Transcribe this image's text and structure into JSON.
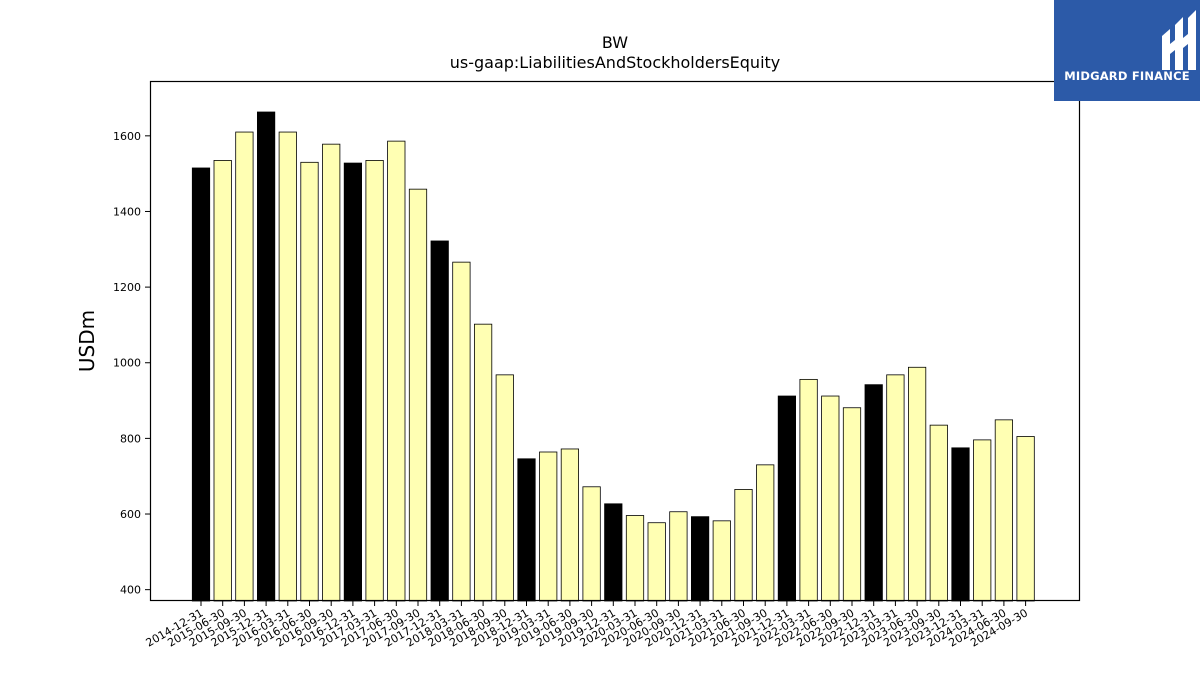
{
  "logo": {
    "brand_name": "MIDGARD FINANCE",
    "icon": "midgard-logo-icon",
    "background": "#2c5aa8"
  },
  "colors": {
    "annual_bar": "#000000",
    "quarter_bar": "#ffffb3",
    "bar_edge": "#000000"
  },
  "chart_data": {
    "type": "bar",
    "title": "BW",
    "subtitle": "us-gaap:LiabilitiesAndStockholdersEquity",
    "xlabel": "",
    "ylabel": "USDm",
    "ylim": [
      370,
      1745
    ],
    "yticks": [
      400,
      600,
      800,
      1000,
      1200,
      1400,
      1600
    ],
    "grid": false,
    "categories": [
      "2014-12-31",
      "2015-06-30",
      "2015-09-30",
      "2015-12-31",
      "2016-03-31",
      "2016-06-30",
      "2016-09-30",
      "2016-12-31",
      "2017-03-31",
      "2017-06-30",
      "2017-09-30",
      "2017-12-31",
      "2018-03-31",
      "2018-06-30",
      "2018-09-30",
      "2018-12-31",
      "2019-03-31",
      "2019-06-30",
      "2019-09-30",
      "2019-12-31",
      "2020-03-31",
      "2020-06-30",
      "2020-09-30",
      "2020-12-31",
      "2021-03-31",
      "2021-06-30",
      "2021-09-30",
      "2021-12-31",
      "2022-03-31",
      "2022-06-30",
      "2022-09-30",
      "2022-12-31",
      "2023-03-31",
      "2023-06-30",
      "2023-09-30",
      "2023-12-31",
      "2024-03-31",
      "2024-06-30",
      "2024-09-30"
    ],
    "values": [
      1515,
      1535,
      1610,
      1663,
      1610,
      1530,
      1578,
      1528,
      1535,
      1586,
      1459,
      1322,
      1266,
      1102,
      968,
      746,
      764,
      772,
      672,
      627,
      596,
      577,
      606,
      593,
      582,
      665,
      730,
      912,
      956,
      912,
      881,
      942,
      968,
      988,
      835,
      775,
      796,
      849,
      805
    ],
    "annual_flags": [
      1,
      0,
      0,
      1,
      0,
      0,
      0,
      1,
      0,
      0,
      0,
      1,
      0,
      0,
      0,
      1,
      0,
      0,
      0,
      1,
      0,
      0,
      0,
      1,
      0,
      0,
      0,
      1,
      0,
      0,
      0,
      1,
      0,
      0,
      0,
      1,
      0,
      0,
      0
    ]
  }
}
